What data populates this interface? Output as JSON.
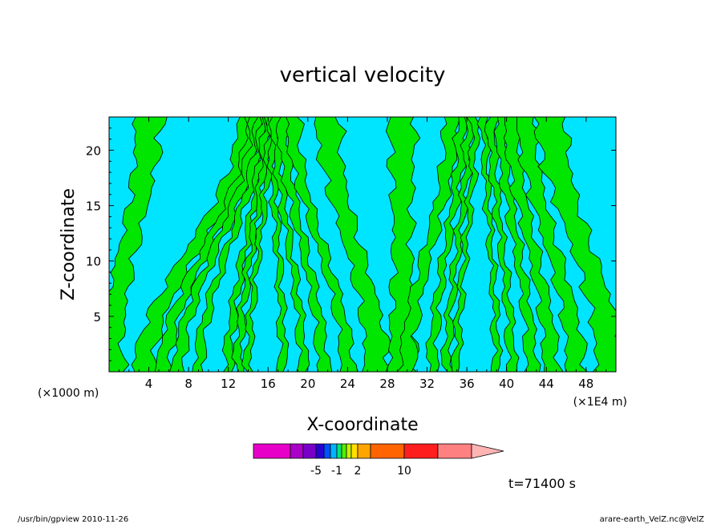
{
  "chart_data": {
    "type": "heatmap",
    "title": "vertical velocity",
    "xlabel": "X-coordinate",
    "ylabel": "Z-coordinate",
    "x_unit_left": "(×1000 m)",
    "x_unit_right": "(×1E4 m)",
    "xlim": [
      0,
      51
    ],
    "ylim": [
      0,
      23
    ],
    "x_ticks": [
      4,
      8,
      12,
      16,
      20,
      24,
      28,
      32,
      36,
      40,
      44,
      48
    ],
    "x_tick_labels": [
      "4",
      "8",
      "12",
      "16",
      "20",
      "24",
      "28",
      "32",
      "36",
      "40",
      "44",
      "48"
    ],
    "y_ticks": [
      5,
      10,
      15,
      20
    ],
    "y_tick_labels": [
      "5",
      "10",
      "15",
      "20"
    ],
    "colorbar": {
      "colors": [
        "#e600c8",
        "#aa00c8",
        "#7800c8",
        "#2800d2",
        "#0050ff",
        "#00b4ff",
        "#00e678",
        "#50f000",
        "#c8f000",
        "#ffe000",
        "#ffa500",
        "#ff6400",
        "#ff1e1e",
        "#ff8080",
        "#ffb4b4"
      ],
      "labels": [
        "-5",
        "-1",
        "2",
        "10"
      ]
    },
    "green_bands": [
      {
        "x0": 0.0,
        "x1": 4.0,
        "w": 1.4
      },
      {
        "x0": 3.5,
        "x1": 14.0,
        "w": 1.1
      },
      {
        "x0": 5.5,
        "x1": 14.5,
        "w": 0.7
      },
      {
        "x0": 7.0,
        "x1": 14.8,
        "w": 0.6
      },
      {
        "x0": 9.0,
        "x1": 15.2,
        "w": 0.5
      },
      {
        "x0": 12.0,
        "x1": 15.5,
        "w": 0.45
      },
      {
        "x0": 13.0,
        "x1": 15.8,
        "w": 0.4
      },
      {
        "x0": 14.0,
        "x1": 16.2,
        "w": 0.35
      },
      {
        "x0": 17.5,
        "x1": 16.4,
        "w": 0.4
      },
      {
        "x0": 19.5,
        "x1": 16.8,
        "w": 0.45
      },
      {
        "x0": 21.5,
        "x1": 17.5,
        "w": 0.6
      },
      {
        "x0": 24.0,
        "x1": 18.5,
        "w": 0.7
      },
      {
        "x0": 27.0,
        "x1": 22.0,
        "w": 1.3
      },
      {
        "x0": 29.5,
        "x1": 29.5,
        "w": 1.4
      },
      {
        "x0": 30.0,
        "x1": 34.5,
        "w": 0.8
      },
      {
        "x0": 32.5,
        "x1": 35.5,
        "w": 0.5
      },
      {
        "x0": 34.0,
        "x1": 36.2,
        "w": 0.4
      },
      {
        "x0": 35.0,
        "x1": 36.8,
        "w": 0.35
      },
      {
        "x0": 39.0,
        "x1": 37.8,
        "w": 0.35
      },
      {
        "x0": 40.5,
        "x1": 38.5,
        "w": 0.45
      },
      {
        "x0": 42.5,
        "x1": 39.5,
        "w": 0.6
      },
      {
        "x0": 44.5,
        "x1": 40.5,
        "w": 0.8
      },
      {
        "x0": 47.0,
        "x1": 42.0,
        "w": 1.0
      },
      {
        "x0": 50.5,
        "x1": 44.5,
        "w": 1.6
      }
    ]
  },
  "annotation": {
    "time": "t=71400 s",
    "footer_left": "/usr/bin/gpview   2010-11-26",
    "footer_right": "arare-earth_VelZ.nc@VelZ"
  }
}
